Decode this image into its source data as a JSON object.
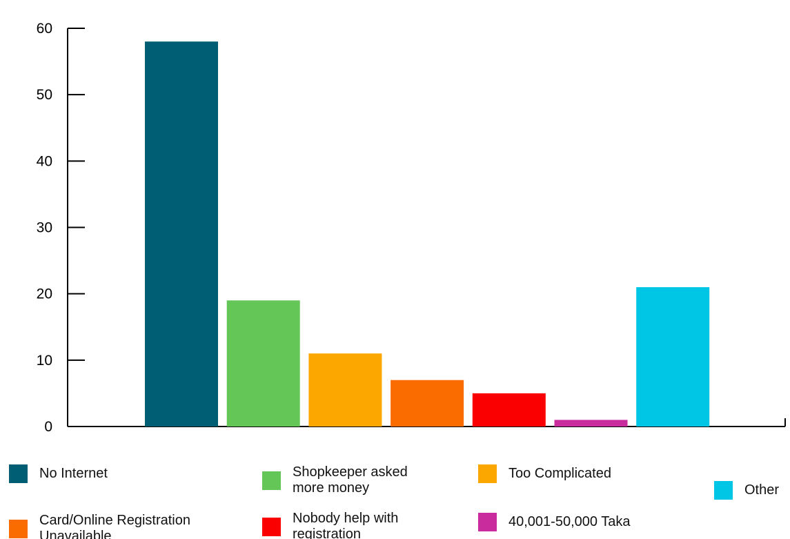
{
  "chart_data": {
    "type": "bar",
    "title": "",
    "xlabel": "",
    "ylabel": "",
    "ylim": [
      0,
      60
    ],
    "yticks": [
      0,
      10,
      20,
      30,
      40,
      50,
      60
    ],
    "grid": false,
    "legend_position": "bottom",
    "categories": [
      "No Internet",
      "Shopkeeper asked more money",
      "Too Complicated",
      "Card/Online Registration Unavailable",
      "Nobody help with registration",
      "40,001-50,000 Taka",
      "Other"
    ],
    "values": [
      58,
      19,
      11,
      7,
      5,
      1,
      21
    ],
    "colors": [
      "#005e74",
      "#63c657",
      "#fba700",
      "#fb6c00",
      "#fb0001",
      "#c92c9d",
      "#00c6e5"
    ]
  },
  "legend": [
    {
      "label": "No Internet",
      "color": "#005e74"
    },
    {
      "label": "Shopkeeper asked\nmore money",
      "color": "#63c657"
    },
    {
      "label": "Too Complicated",
      "color": "#fba700"
    },
    {
      "label": "Other",
      "color": "#00c6e5"
    },
    {
      "label": "Card/Online Registration\nUnavailable",
      "color": "#fb6c00"
    },
    {
      "label": "Nobody help with\nregistration",
      "color": "#fb0001"
    },
    {
      "label": "40,001-50,000 Taka",
      "color": "#c92c9d"
    }
  ]
}
